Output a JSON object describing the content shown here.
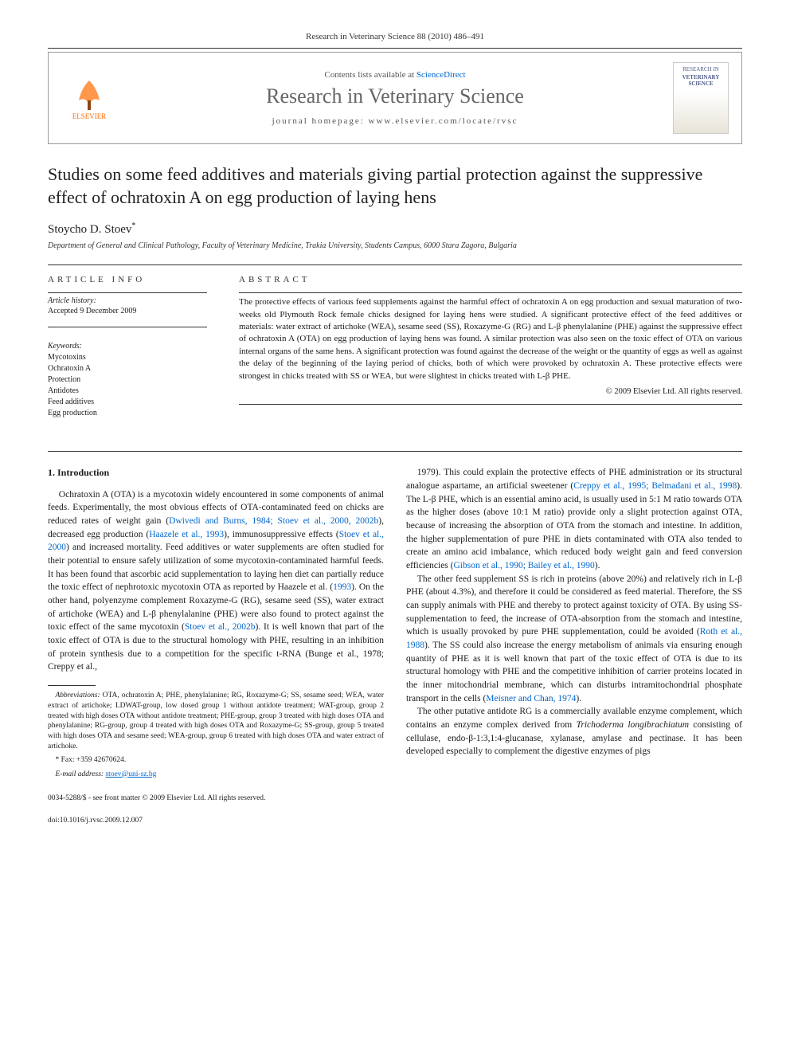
{
  "header": {
    "citation": "Research in Veterinary Science 88 (2010) 486–491",
    "contents_prefix": "Contents lists available at ",
    "contents_link": "ScienceDirect",
    "journal_name": "Research in Veterinary Science",
    "homepage_label": "journal homepage: ",
    "homepage_url": "www.elsevier.com/locate/rvsc",
    "publisher_logo_text": "ELSEVIER",
    "cover_text_top": "RESEARCH IN",
    "cover_text_main": "VETERINARY SCIENCE"
  },
  "article": {
    "title": "Studies on some feed additives and materials giving partial protection against the suppressive effect of ochratoxin A on egg production of laying hens",
    "author": "Stoycho D. Stoev",
    "author_marker": "*",
    "affiliation": "Department of General and Clinical Pathology, Faculty of Veterinary Medicine, Trakia University, Students Campus, 6000 Stara Zagora, Bulgaria"
  },
  "info": {
    "heading": "ARTICLE INFO",
    "history_label": "Article history:",
    "accepted": "Accepted 9 December 2009",
    "keywords_label": "Keywords:",
    "keywords": [
      "Mycotoxins",
      "Ochratoxin A",
      "Protection",
      "Antidotes",
      "Feed additives",
      "Egg production"
    ]
  },
  "abstract": {
    "heading": "ABSTRACT",
    "text": "The protective effects of various feed supplements against the harmful effect of ochratoxin A on egg production and sexual maturation of two-weeks old Plymouth Rock female chicks designed for laying hens were studied. A significant protective effect of the feed additives or materials: water extract of artichoke (WEA), sesame seed (SS), Roxazyme-G (RG) and L-β phenylalanine (PHE) against the suppressive effect of ochratoxin A (OTA) on egg production of laying hens was found. A similar protection was also seen on the toxic effect of OTA on various internal organs of the same hens. A significant protection was found against the decrease of the weight or the quantity of eggs as well as against the delay of the beginning of the laying period of chicks, both of which were provoked by ochratoxin A. These protective effects were strongest in chicks treated with SS or WEA, but were slightest in chicks treated with L-β PHE.",
    "copyright": "© 2009 Elsevier Ltd. All rights reserved."
  },
  "body": {
    "section_heading": "1. Introduction",
    "col1_p1": "Ochratoxin A (OTA) is a mycotoxin widely encountered in some components of animal feeds. Experimentally, the most obvious effects of OTA-contaminated feed on chicks are reduced rates of weight gain (Dwivedi and Burns, 1984; Stoev et al., 2000, 2002b), decreased egg production (Haazele et al., 1993), immunosuppressive effects (Stoev et al., 2000) and increased mortality. Feed additives or water supplements are often studied for their potential to ensure safely utilization of some mycotoxin-contaminated harmful feeds. It has been found that ascorbic acid supplementation to laying hen diet can partially reduce the toxic effect of nephrotoxic mycotoxin OTA as reported by Haazele et al. (1993). On the other hand, polyenzyme complement Roxazyme-G (RG), sesame seed (SS), water extract of artichoke (WEA) and L-β phenylalanine (PHE) were also found to protect against the toxic effect of the same mycotoxin (Stoev et al., 2002b). It is well known that part of the toxic effect of OTA is due to the structural homology with PHE, resulting in an inhibition of protein synthesis due to a competition for the specific t-RNA (Bunge et al., 1978; Creppy et al.,",
    "col2_p1": "1979). This could explain the protective effects of PHE administration or its structural analogue aspartame, an artificial sweetener (Creppy et al., 1995; Belmadani et al., 1998). The L-β PHE, which is an essential amino acid, is usually used in 5:1 M ratio towards OTA as the higher doses (above 10:1 M ratio) provide only a slight protection against OTA, because of increasing the absorption of OTA from the stomach and intestine. In addition, the higher supplementation of pure PHE in diets contaminated with OTA also tended to create an amino acid imbalance, which reduced body weight gain and feed conversion efficiencies (Gibson et al., 1990; Bailey et al., 1990).",
    "col2_p2": "The other feed supplement SS is rich in proteins (above 20%) and relatively rich in L-β PHE (about 4.3%), and therefore it could be considered as feed material. Therefore, the SS can supply animals with PHE and thereby to protect against toxicity of OTA. By using SS-supplementation to feed, the increase of OTA-absorption from the stomach and intestine, which is usually provoked by pure PHE supplementation, could be avoided (Roth et al., 1988). The SS could also increase the energy metabolism of animals via ensuring enough quantity of PHE as it is well known that part of the toxic effect of OTA is due to its structural homology with PHE and the competitive inhibition of carrier proteins located in the inner mitochondrial membrane, which can disturbs intramitochondrial phosphate transport in the cells (Meisner and Chan, 1974).",
    "col2_p3": "The other putative antidote RG is a commercially available enzyme complement, which contains an enzyme complex derived from Trichoderma longibrachiatum consisting of cellulase, endo-β-1:3,1:4-glucanase, xylanase, amylase and pectinase. It has been developed especially to complement the digestive enzymes of pigs"
  },
  "footnotes": {
    "abbrev_label": "Abbreviations:",
    "abbrev_text": " OTA, ochratoxin A; PHE, phenylalanine; RG, Roxazyme-G; SS, sesame seed; WEA, water extract of artichoke; LDWAT-group, low dosed group 1 without antidote treatment; WAT-group, group 2 treated with high doses OTA without antidote treatment; PHE-group, group 3 treated with high doses OTA and phenylalanine; RG-group, group 4 treated with high doses OTA and Roxazyme-G; SS-group, group 5 treated with high doses OTA and sesame seed; WEA-group, group 6 treated with high doses OTA and water extract of artichoke.",
    "fax_label": "* Fax: +359 42670624.",
    "email_label": "E-mail address:",
    "email": "stoev@uni-sz.bg"
  },
  "bottom": {
    "issn": "0034-5288/$ - see front matter © 2009 Elsevier Ltd. All rights reserved.",
    "doi": "doi:10.1016/j.rvsc.2009.12.007"
  },
  "colors": {
    "link": "#0066cc",
    "elsevier_orange": "#ff6b00",
    "text": "#1a1a1a",
    "muted": "#666666"
  }
}
